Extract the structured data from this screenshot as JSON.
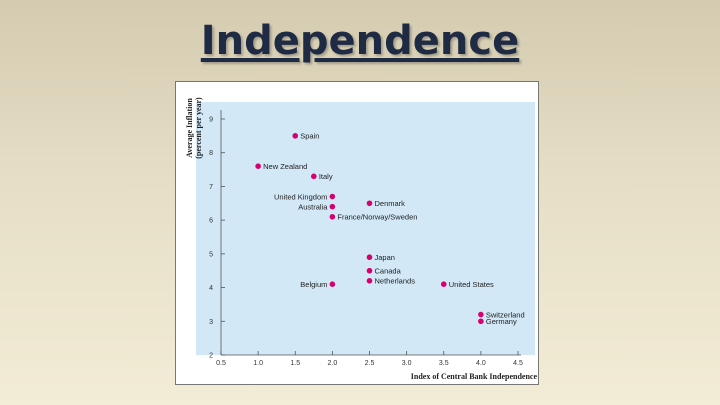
{
  "slide": {
    "title": "Independence"
  },
  "chart_data": {
    "type": "scatter",
    "title": "",
    "xlabel": "Index of Central Bank Independence",
    "ylabel": "Average Inflation (percent per year)",
    "ylabel_lines": [
      "Average Inflation",
      "(percent per year)"
    ],
    "xlim": [
      0.5,
      4.5
    ],
    "ylim": [
      2,
      9
    ],
    "xticks": [
      "0.5",
      "1.0",
      "1.5",
      "2.0",
      "2.5",
      "3.0",
      "3.5",
      "4.0",
      "4.5"
    ],
    "yticks": [
      "2",
      "3",
      "4",
      "5",
      "6",
      "7",
      "8",
      "9"
    ],
    "grid": false,
    "colors": {
      "point": "#d6006e",
      "plot_bg": "#d2e8f7"
    },
    "points": [
      {
        "label": "Spain",
        "x": 1.5,
        "y": 8.5
      },
      {
        "label": "New Zealand",
        "x": 1.0,
        "y": 7.6
      },
      {
        "label": "Italy",
        "x": 1.75,
        "y": 7.3
      },
      {
        "label": "United Kingdom",
        "x": 2.0,
        "y": 6.7
      },
      {
        "label": "Australia",
        "x": 2.0,
        "y": 6.4
      },
      {
        "label": "France/Norway/Sweden",
        "x": 2.0,
        "y": 6.1
      },
      {
        "label": "Denmark",
        "x": 2.5,
        "y": 6.5
      },
      {
        "label": "Japan",
        "x": 2.5,
        "y": 4.9
      },
      {
        "label": "Canada",
        "x": 2.5,
        "y": 4.5
      },
      {
        "label": "Netherlands",
        "x": 2.5,
        "y": 4.2
      },
      {
        "label": "Belgium",
        "x": 2.0,
        "y": 4.1
      },
      {
        "label": "United States",
        "x": 3.5,
        "y": 4.1
      },
      {
        "label": "Switzerland",
        "x": 4.0,
        "y": 3.2
      },
      {
        "label": "Germany",
        "x": 4.0,
        "y": 3.0
      }
    ]
  }
}
